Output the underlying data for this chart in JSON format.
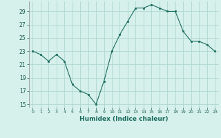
{
  "x": [
    0,
    1,
    2,
    3,
    4,
    5,
    6,
    7,
    8,
    9,
    10,
    11,
    12,
    13,
    14,
    15,
    16,
    17,
    18,
    19,
    20,
    21,
    22,
    23
  ],
  "y": [
    23,
    22.5,
    21.5,
    22.5,
    21.5,
    18,
    17,
    16.5,
    15,
    18.5,
    23,
    25.5,
    27.5,
    29.5,
    29.5,
    30,
    29.5,
    29,
    29,
    26,
    24.5,
    24.5,
    24,
    23
  ],
  "xlim": [
    -0.5,
    23.5
  ],
  "ylim": [
    14.5,
    30.5
  ],
  "yticks": [
    15,
    17,
    19,
    21,
    23,
    25,
    27,
    29
  ],
  "xticks": [
    0,
    1,
    2,
    3,
    4,
    5,
    6,
    7,
    8,
    9,
    10,
    11,
    12,
    13,
    14,
    15,
    16,
    17,
    18,
    19,
    20,
    21,
    22,
    23
  ],
  "xlabel": "Humidex (Indice chaleur)",
  "line_color": "#1a6b5e",
  "marker": "s",
  "marker_size": 2,
  "bg_color": "#d6f0eb",
  "grid_color": "#b0d8d0"
}
